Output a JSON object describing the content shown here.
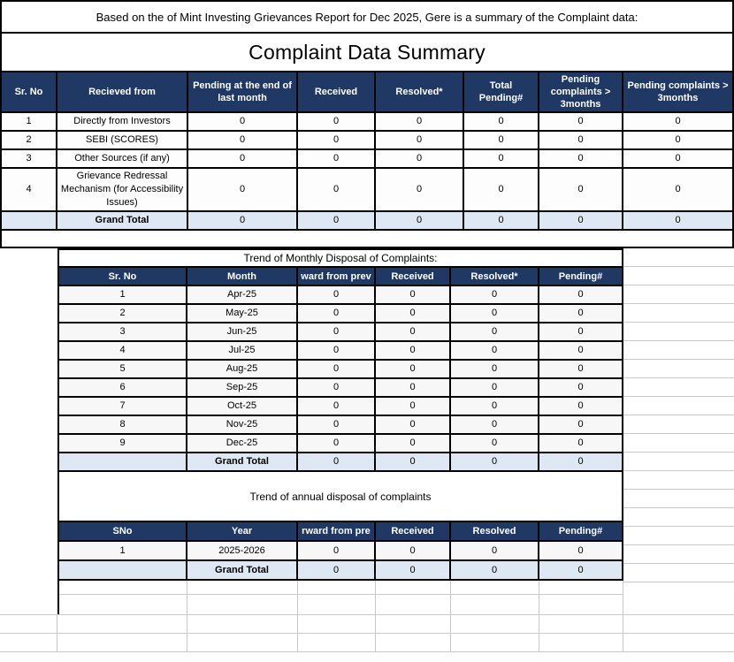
{
  "note": "Based on the of Mint Investing Grievances Report for Dec 2025, Gere is a summary of the Complaint data:",
  "title": "Complaint Data Summary",
  "colors": {
    "header_bg": "#1F3864",
    "header_text": "#FFFFFF",
    "total_row_bg": "#DEE8F5",
    "table_border": "#000000",
    "gridline": "#C9C9C9"
  },
  "summary_table": {
    "headers": [
      "Sr. No",
      "Recieved from",
      "Pending at the end of last month",
      "Received",
      "Resolved*",
      "Total Pending#",
      "Pending complaints > 3months",
      "Pending complaints > 3months"
    ],
    "rows": [
      {
        "cells": [
          "1",
          "Directly from Investors",
          "0",
          "0",
          "0",
          "0",
          "0",
          "0"
        ]
      },
      {
        "cells": [
          "2",
          "SEBI (SCORES)",
          "0",
          "0",
          "0",
          "0",
          "0",
          "0"
        ]
      },
      {
        "cells": [
          "3",
          "Other Sources (if any)",
          "0",
          "0",
          "0",
          "0",
          "0",
          "0"
        ]
      },
      {
        "cells": [
          "4",
          "Grievance Redressal Mechanism (for Accessibility Issues)",
          "0",
          "0",
          "0",
          "0",
          "0",
          "0"
        ]
      },
      {
        "cells": [
          "",
          "Grand Total",
          "0",
          "0",
          "0",
          "0",
          "0",
          "0"
        ],
        "total": true
      }
    ]
  },
  "monthly_table": {
    "title": "Trend of Monthly Disposal of Complaints:",
    "headers": [
      "Sr. No",
      "Month",
      "ward from prev",
      "Received",
      "Resolved*",
      "Pending#"
    ],
    "rows": [
      {
        "cells": [
          "1",
          "Apr-25",
          "0",
          "0",
          "0",
          "0"
        ]
      },
      {
        "cells": [
          "2",
          "May-25",
          "0",
          "0",
          "0",
          "0"
        ]
      },
      {
        "cells": [
          "3",
          "Jun-25",
          "0",
          "0",
          "0",
          "0"
        ]
      },
      {
        "cells": [
          "4",
          "Jul-25",
          "0",
          "0",
          "0",
          "0"
        ]
      },
      {
        "cells": [
          "5",
          "Aug-25",
          "0",
          "0",
          "0",
          "0"
        ]
      },
      {
        "cells": [
          "6",
          "Sep-25",
          "0",
          "0",
          "0",
          "0"
        ]
      },
      {
        "cells": [
          "7",
          "Oct-25",
          "0",
          "0",
          "0",
          "0"
        ]
      },
      {
        "cells": [
          "8",
          "Nov-25",
          "0",
          "0",
          "0",
          "0"
        ]
      },
      {
        "cells": [
          "9",
          "Dec-25",
          "0",
          "0",
          "0",
          "0"
        ]
      },
      {
        "cells": [
          "",
          "Grand Total",
          "0",
          "0",
          "0",
          "0"
        ],
        "total": true
      }
    ]
  },
  "annual_table": {
    "title": "Trend of annual disposal of complaints",
    "headers": [
      "SNo",
      "Year",
      "rward from pre",
      "Received",
      "Resolved",
      "Pending#"
    ],
    "rows": [
      {
        "cells": [
          "1",
          "2025-2026",
          "0",
          "0",
          "0",
          "0"
        ]
      },
      {
        "cells": [
          "",
          "Grand Total",
          "0",
          "0",
          "0",
          "0"
        ],
        "total": true
      }
    ]
  }
}
